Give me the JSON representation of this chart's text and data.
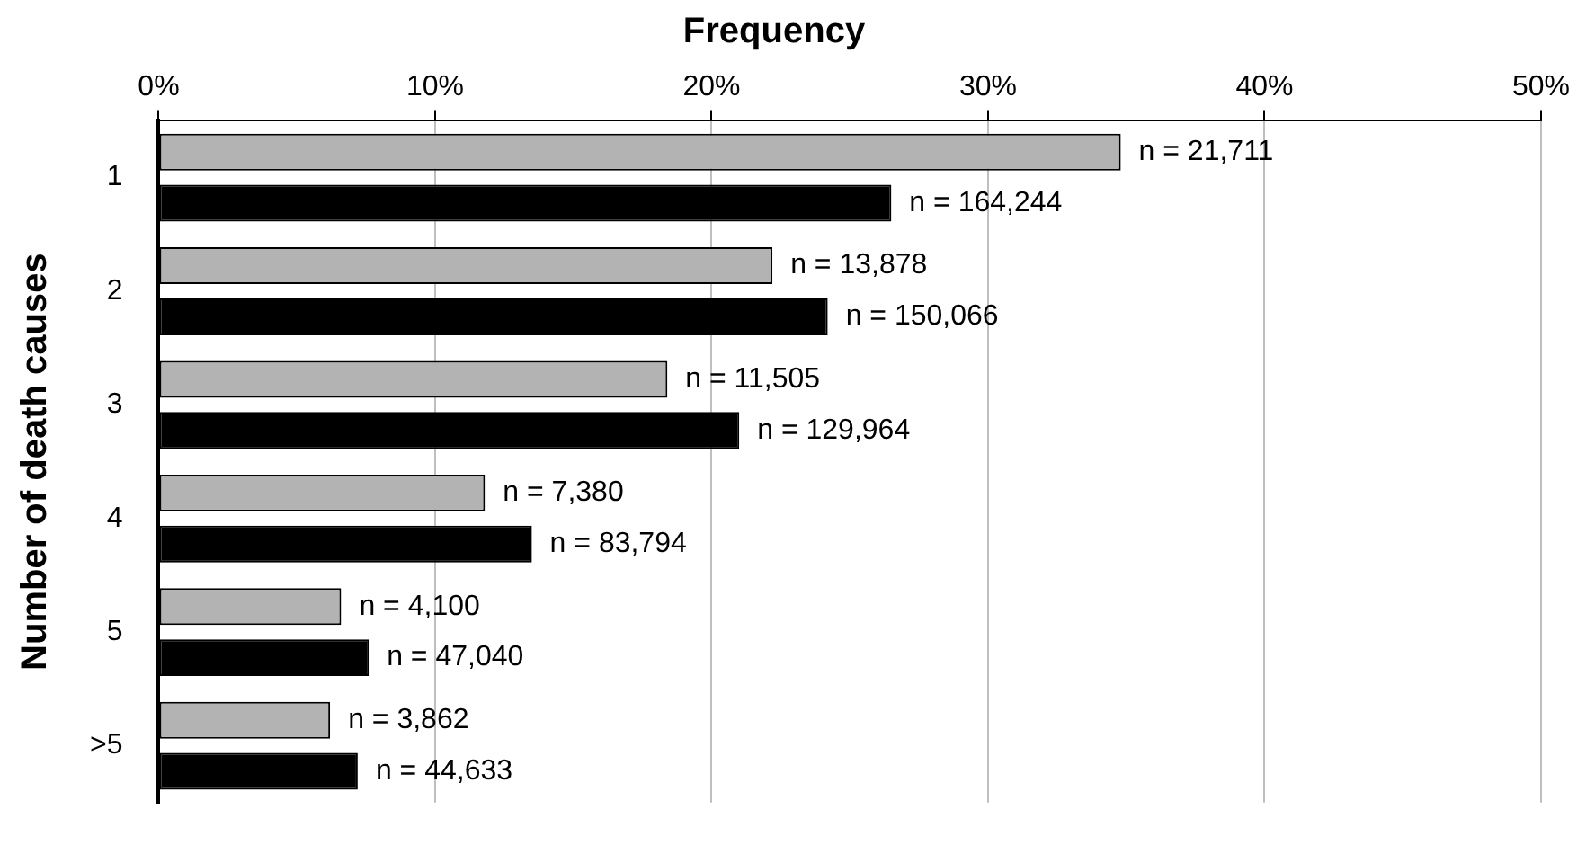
{
  "chart_data": {
    "type": "bar",
    "orientation": "horizontal",
    "title": "Frequency",
    "ylabel": "Number of death causes",
    "categories": [
      "1",
      "2",
      "3",
      "4",
      "5",
      ">5"
    ],
    "series": [
      {
        "color": "#b3b3b3",
        "values": [
          34.8,
          22.2,
          18.4,
          11.8,
          6.6,
          6.2
        ]
      },
      {
        "color": "#000000",
        "values": [
          26.5,
          24.2,
          21.0,
          13.5,
          7.6,
          7.2
        ]
      }
    ],
    "annotations": [
      {
        "text": "n = 21,711",
        "x": 34.8,
        "y": "1"
      },
      {
        "text": "n = 164,244",
        "x": 26.5,
        "y": "1"
      },
      {
        "text": "n = 13,878",
        "x": 22.2,
        "y": "2"
      },
      {
        "text": "n = 150,066",
        "x": 24.2,
        "y": "2"
      },
      {
        "text": "n = 11,505",
        "x": 18.4,
        "y": "3"
      },
      {
        "text": "n = 129,964",
        "x": 21.0,
        "y": "3"
      },
      {
        "text": "n = 7,380",
        "x": 11.8,
        "y": "4"
      },
      {
        "text": "n = 83,794",
        "x": 13.5,
        "y": "4"
      },
      {
        "text": "n = 4,100",
        "x": 6.6,
        "y": "5"
      },
      {
        "text": "n = 47,040",
        "x": 7.6,
        "y": "5"
      },
      {
        "text": "n = 3,862",
        "x": 6.2,
        "y": ">5"
      },
      {
        "text": "n = 44,633",
        "x": 7.2,
        "y": ">5"
      }
    ],
    "xlim": [
      0,
      50
    ],
    "xticks": [
      {
        "value": 0,
        "label": "0%"
      },
      {
        "value": 10,
        "label": "10%"
      },
      {
        "value": 20,
        "label": "20%"
      },
      {
        "value": 30,
        "label": "30%"
      },
      {
        "value": 40,
        "label": "40%"
      },
      {
        "value": 50,
        "label": "50%"
      }
    ],
    "grid": "x",
    "legend": false
  }
}
